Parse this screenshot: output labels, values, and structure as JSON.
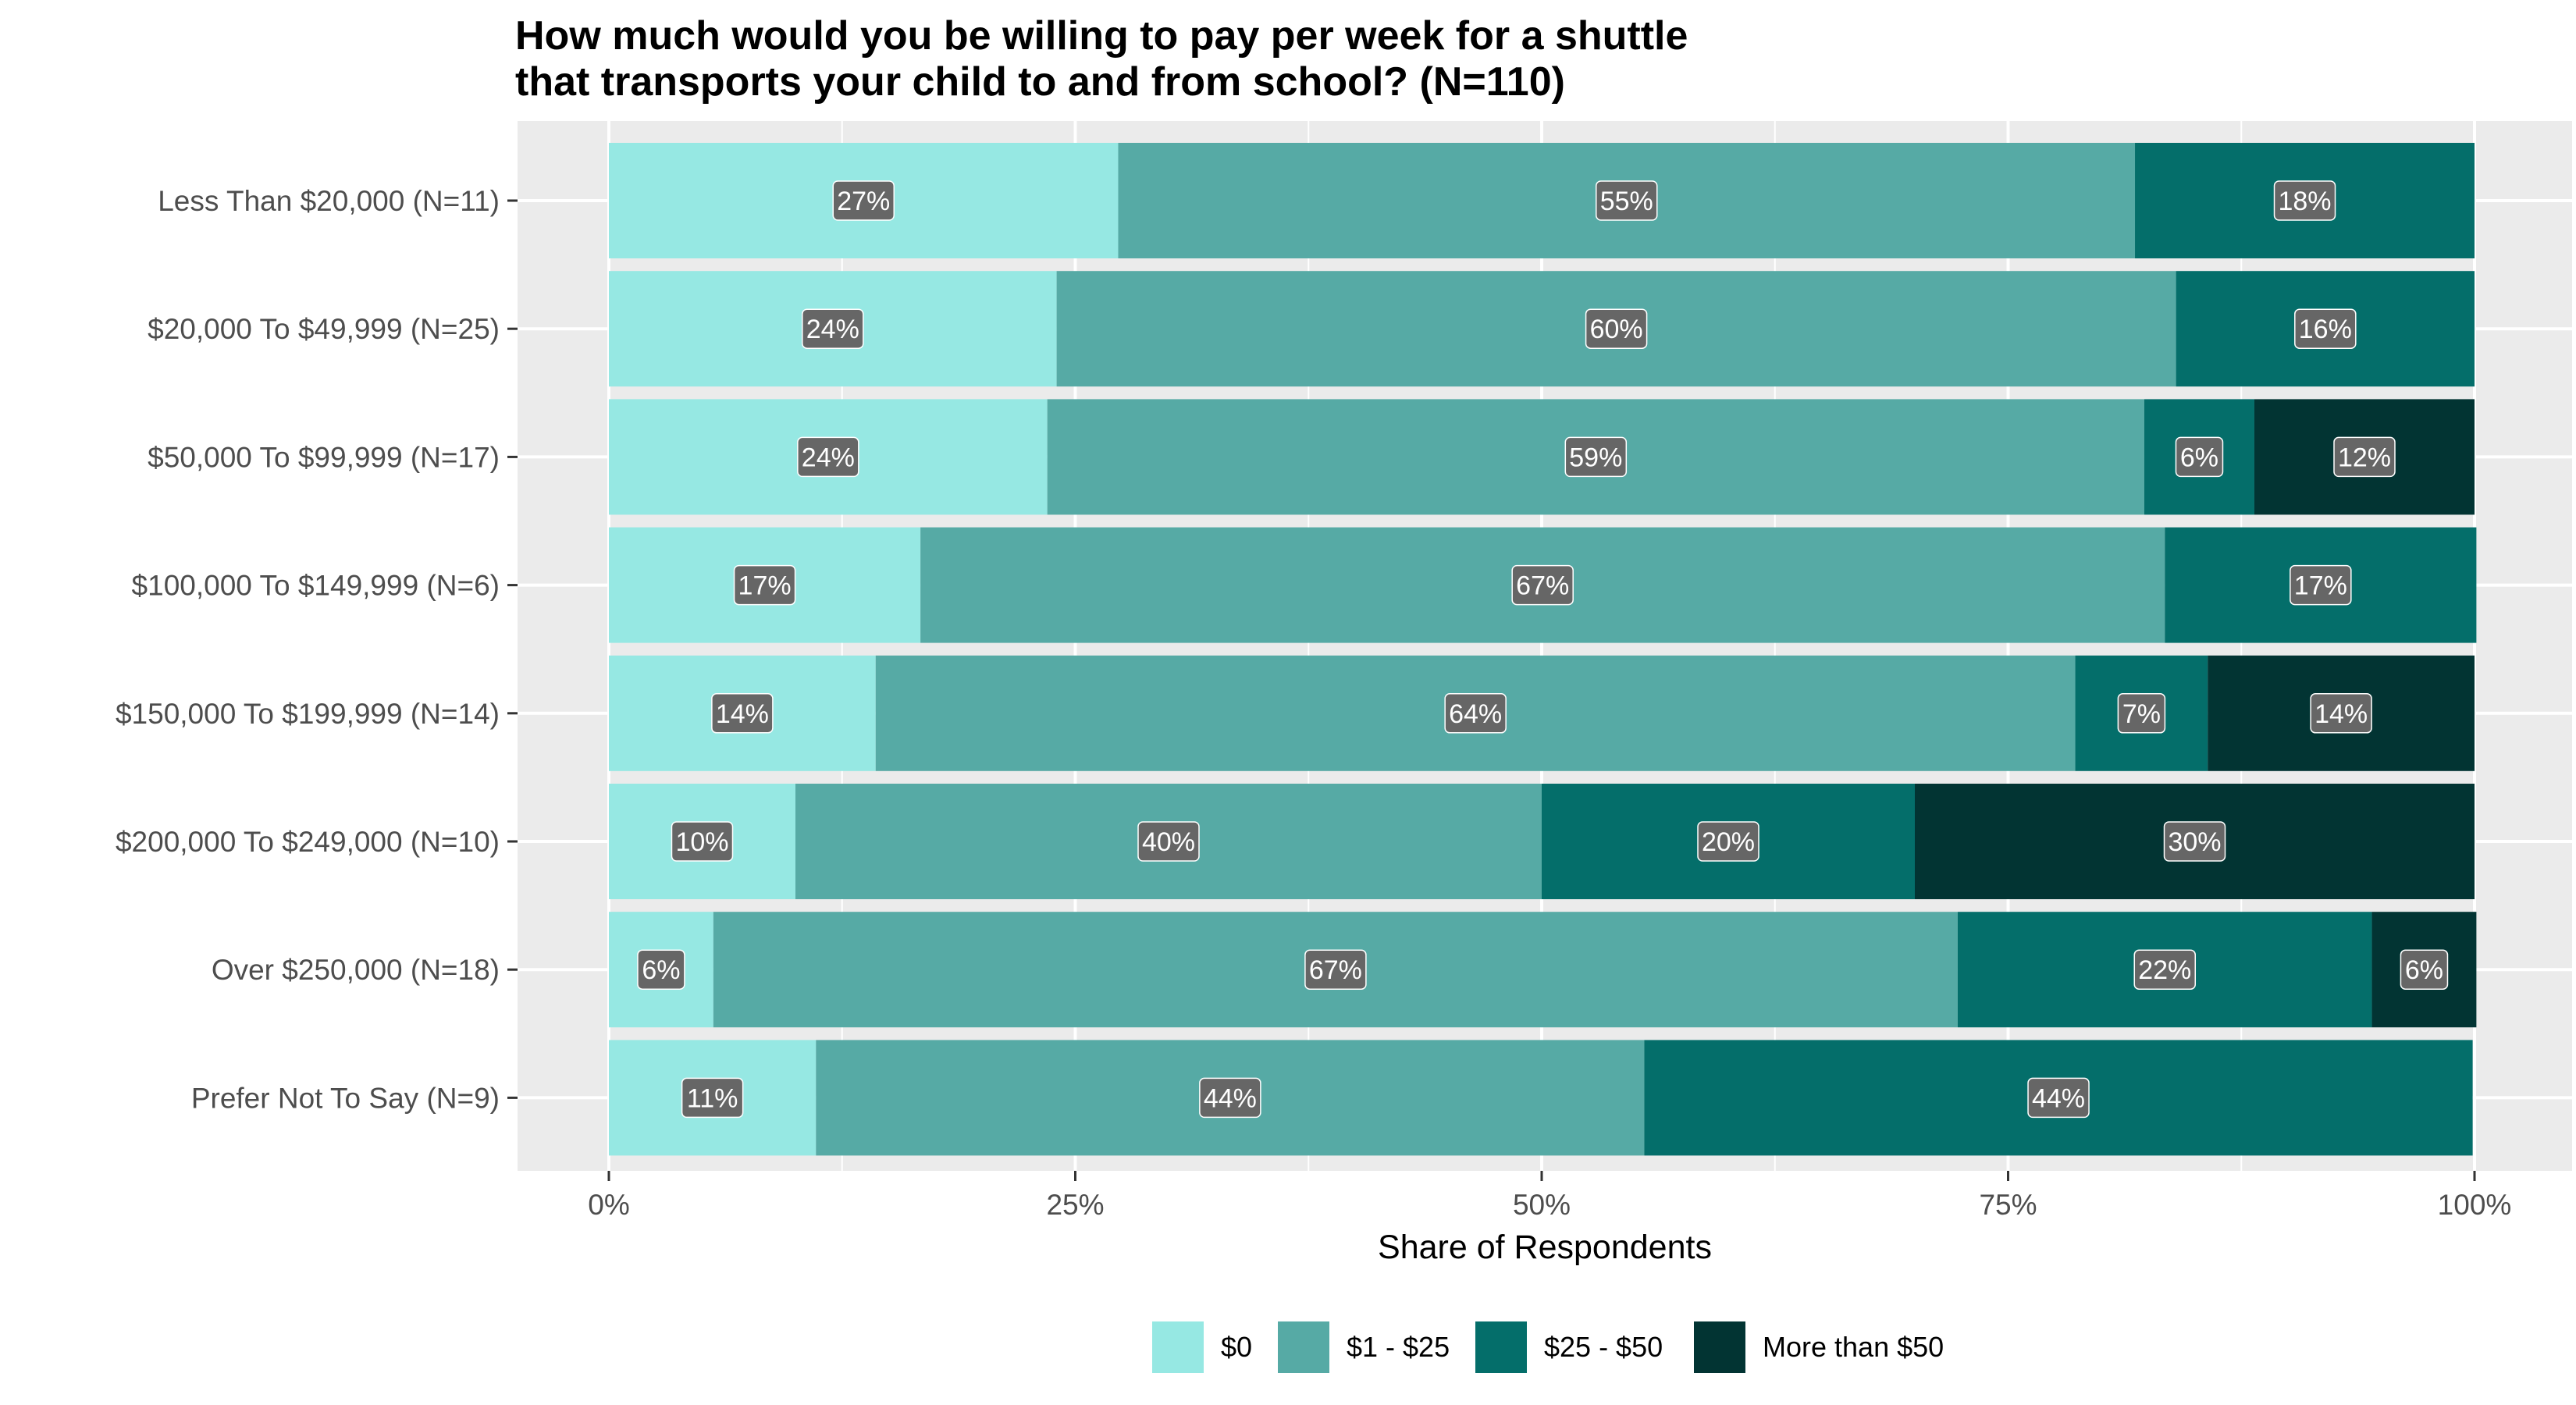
{
  "chart_data": {
    "type": "bar",
    "orientation": "horizontal",
    "stacked": true,
    "title_lines": [
      "How much would you be willing to pay per week for a shuttle",
      "that transports your child to and from school? (N=110)"
    ],
    "xlabel": "Share of Respondents",
    "ylabel": "",
    "xlim": [
      0,
      100
    ],
    "x_ticks": [
      0,
      25,
      50,
      75,
      100
    ],
    "x_tick_labels": [
      "0%",
      "25%",
      "50%",
      "75%",
      "100%"
    ],
    "grid": true,
    "legend_position": "bottom",
    "categories": [
      "Less Than $20,000 (N=11)",
      "$20,000 To $49,999 (N=25)",
      "$50,000 To $99,999 (N=17)",
      "$100,000 To $149,999 (N=6)",
      "$150,000 To $199,999 (N=14)",
      "$200,000 To $249,000 (N=10)",
      "Over $250,000 (N=18)",
      "Prefer Not To Say (N=9)"
    ],
    "series": [
      {
        "name": "$0",
        "color": "#96e8e3",
        "values": [
          27.3,
          24,
          23.5,
          16.7,
          14.3,
          10,
          5.6,
          11.1
        ],
        "labels": [
          "27%",
          "24%",
          "24%",
          "17%",
          "14%",
          "10%",
          "6%",
          "11%"
        ]
      },
      {
        "name": "$1 - $25",
        "color": "#56aaa5",
        "values": [
          54.5,
          60,
          58.8,
          66.7,
          64.3,
          40,
          66.7,
          44.4
        ],
        "labels": [
          "55%",
          "60%",
          "59%",
          "67%",
          "64%",
          "40%",
          "67%",
          "44%"
        ]
      },
      {
        "name": "$25 - $50",
        "color": "#046e6a",
        "values": [
          18.2,
          16,
          5.9,
          16.7,
          7.1,
          20,
          22.2,
          44.4
        ],
        "labels": [
          "18%",
          "16%",
          "6%",
          "17%",
          "7%",
          "20%",
          "22%",
          "44%"
        ]
      },
      {
        "name": "More than $50",
        "color": "#023433",
        "values": [
          0,
          0,
          11.8,
          0,
          14.3,
          30,
          5.6,
          0
        ],
        "labels": [
          "",
          "",
          "12%",
          "",
          "14%",
          "30%",
          "6%",
          ""
        ]
      }
    ]
  }
}
